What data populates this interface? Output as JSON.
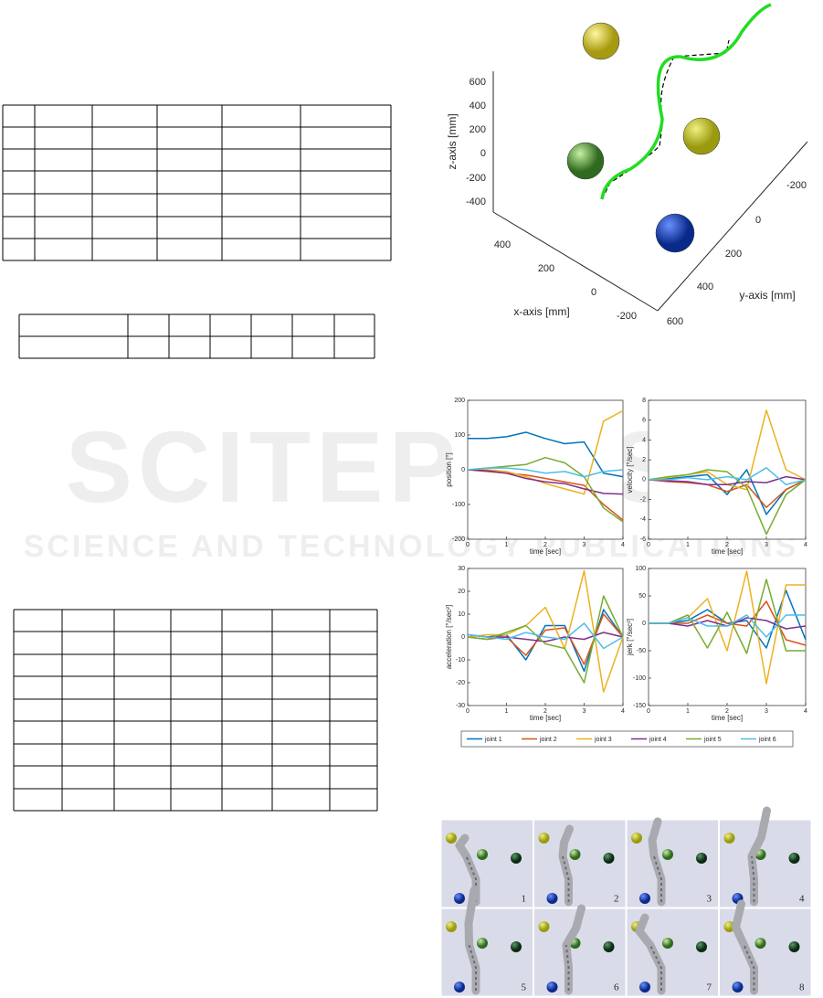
{
  "watermark": {
    "title": "SCITEPRESS",
    "subtitle": "SCIENCE AND TECHNOLOGY PUBLICATIONS"
  },
  "figure_3d": {
    "xlabel": "x-axis [mm]",
    "ylabel": "y-axis [mm]",
    "zlabel": "z-axis [mm]",
    "zticks": [
      600,
      400,
      200,
      0,
      -200,
      -400
    ],
    "xticks": [
      400,
      200,
      0,
      -200
    ],
    "yticks": [
      -200,
      0,
      200,
      400,
      600
    ]
  },
  "chart_data": [
    {
      "type": "line",
      "ylabel": "position [°]",
      "xlabel": "time [sec]",
      "xlim": [
        0,
        4
      ],
      "xticks": [
        0,
        1,
        2,
        3,
        4
      ],
      "ylim": [
        -200,
        200
      ],
      "yticks": [
        -200,
        -100,
        0,
        100,
        200
      ],
      "x": [
        0,
        0.5,
        1,
        1.5,
        2,
        2.5,
        3,
        3.5,
        4
      ],
      "series": [
        {
          "name": "joint 1",
          "color": "#0072bd",
          "values": [
            90,
            90,
            95,
            108,
            90,
            75,
            80,
            -10,
            -20
          ]
        },
        {
          "name": "joint 2",
          "color": "#d95319",
          "values": [
            0,
            -5,
            -10,
            -15,
            -25,
            -35,
            -45,
            -100,
            -145
          ]
        },
        {
          "name": "joint 3",
          "color": "#edb120",
          "values": [
            0,
            0,
            -5,
            -20,
            -40,
            -55,
            -70,
            140,
            170
          ]
        },
        {
          "name": "joint 4",
          "color": "#7e2f8e",
          "values": [
            0,
            -3,
            -10,
            -25,
            -35,
            -40,
            -55,
            -68,
            -70
          ]
        },
        {
          "name": "joint 5",
          "color": "#77ac30",
          "values": [
            0,
            5,
            10,
            15,
            35,
            20,
            -20,
            -110,
            -150
          ]
        },
        {
          "name": "joint 6",
          "color": "#4dbeee",
          "values": [
            0,
            5,
            5,
            0,
            -10,
            -5,
            -20,
            -5,
            0
          ]
        }
      ]
    },
    {
      "type": "line",
      "ylabel": "velocity [°/sec]",
      "xlabel": "time [sec]",
      "xlim": [
        0,
        4
      ],
      "xticks": [
        0,
        1,
        2,
        3,
        4
      ],
      "ylim": [
        -6,
        8
      ],
      "yticks": [
        -6,
        -4,
        -2,
        0,
        2,
        4,
        6,
        8
      ],
      "x": [
        0,
        0.5,
        1,
        1.5,
        2,
        2.5,
        3,
        3.5,
        4
      ],
      "series": [
        {
          "name": "joint 1",
          "color": "#0072bd",
          "values": [
            0,
            0.1,
            0.3,
            0.5,
            -1.5,
            1,
            -3.5,
            -1,
            0
          ]
        },
        {
          "name": "joint 2",
          "color": "#d95319",
          "values": [
            0,
            -0.2,
            -0.3,
            -0.5,
            -1.2,
            -0.5,
            -2.8,
            -1,
            0
          ]
        },
        {
          "name": "joint 3",
          "color": "#edb120",
          "values": [
            0,
            0.2,
            0.5,
            0.8,
            -0.5,
            -1,
            7,
            1,
            0
          ]
        },
        {
          "name": "joint 4",
          "color": "#7e2f8e",
          "values": [
            0,
            -0.1,
            -0.2,
            -0.5,
            -0.5,
            -0.2,
            -0.3,
            0.3,
            0
          ]
        },
        {
          "name": "joint 5",
          "color": "#77ac30",
          "values": [
            0,
            0.3,
            0.5,
            1,
            0.8,
            -0.8,
            -5.5,
            -1.5,
            0
          ]
        },
        {
          "name": "joint 6",
          "color": "#4dbeee",
          "values": [
            0,
            0,
            0.2,
            0,
            0.3,
            0,
            1.2,
            -0.5,
            0
          ]
        }
      ]
    },
    {
      "type": "line",
      "ylabel": "acceleration [°/sec²]",
      "xlabel": "time [sec]",
      "xlim": [
        0,
        4
      ],
      "xticks": [
        0,
        1,
        2,
        3,
        4
      ],
      "ylim": [
        -30,
        30
      ],
      "yticks": [
        -30,
        -20,
        -10,
        0,
        10,
        20,
        30
      ],
      "x": [
        0,
        0.5,
        1,
        1.5,
        2,
        2.5,
        3,
        3.5,
        4
      ],
      "series": [
        {
          "name": "joint 1",
          "color": "#0072bd",
          "values": [
            1,
            0,
            1,
            -10,
            5,
            5,
            -15,
            12,
            0
          ]
        },
        {
          "name": "joint 2",
          "color": "#d95319",
          "values": [
            0,
            -1,
            0,
            -8,
            3,
            4,
            -12,
            10,
            0
          ]
        },
        {
          "name": "joint 3",
          "color": "#edb120",
          "values": [
            0,
            1,
            1,
            5,
            13,
            -5,
            29,
            -24,
            0
          ]
        },
        {
          "name": "joint 4",
          "color": "#7e2f8e",
          "values": [
            1,
            0,
            0,
            -1,
            -2,
            0,
            -1,
            2,
            0
          ]
        },
        {
          "name": "joint 5",
          "color": "#77ac30",
          "values": [
            0,
            -1,
            2,
            5,
            -3,
            -5,
            -20,
            18,
            0
          ]
        },
        {
          "name": "joint 6",
          "color": "#4dbeee",
          "values": [
            1,
            0,
            -1,
            2,
            0,
            -1,
            6,
            -5,
            0
          ]
        }
      ]
    },
    {
      "type": "line",
      "ylabel": "jerk [°/sec³]",
      "xlabel": "time [sec]",
      "xlim": [
        0,
        4
      ],
      "xticks": [
        0,
        1,
        2,
        3,
        4
      ],
      "ylim": [
        -150,
        100
      ],
      "yticks": [
        -150,
        -100,
        -50,
        0,
        50,
        100
      ],
      "x": [
        0,
        0.5,
        1,
        1.5,
        2,
        2.5,
        3,
        3.5,
        4
      ],
      "series": [
        {
          "name": "joint 1",
          "color": "#0072bd",
          "values": [
            0,
            0,
            5,
            25,
            0,
            5,
            -45,
            60,
            -30
          ]
        },
        {
          "name": "joint 2",
          "color": "#d95319",
          "values": [
            0,
            0,
            0,
            15,
            0,
            -5,
            40,
            -30,
            -40
          ]
        },
        {
          "name": "joint 3",
          "color": "#edb120",
          "values": [
            0,
            0,
            10,
            45,
            -50,
            95,
            -110,
            70,
            70
          ]
        },
        {
          "name": "joint 4",
          "color": "#7e2f8e",
          "values": [
            0,
            0,
            -5,
            5,
            -5,
            10,
            5,
            -10,
            -5
          ]
        },
        {
          "name": "joint 5",
          "color": "#77ac30",
          "values": [
            0,
            0,
            15,
            -45,
            20,
            -55,
            80,
            -50,
            -50
          ]
        },
        {
          "name": "joint 6",
          "color": "#4dbeee",
          "values": [
            0,
            0,
            10,
            -5,
            -5,
            15,
            -25,
            15,
            15
          ]
        }
      ]
    }
  ],
  "snapshots": {
    "labels": [
      "1",
      "2",
      "3",
      "4",
      "5",
      "6",
      "7",
      "8"
    ]
  }
}
